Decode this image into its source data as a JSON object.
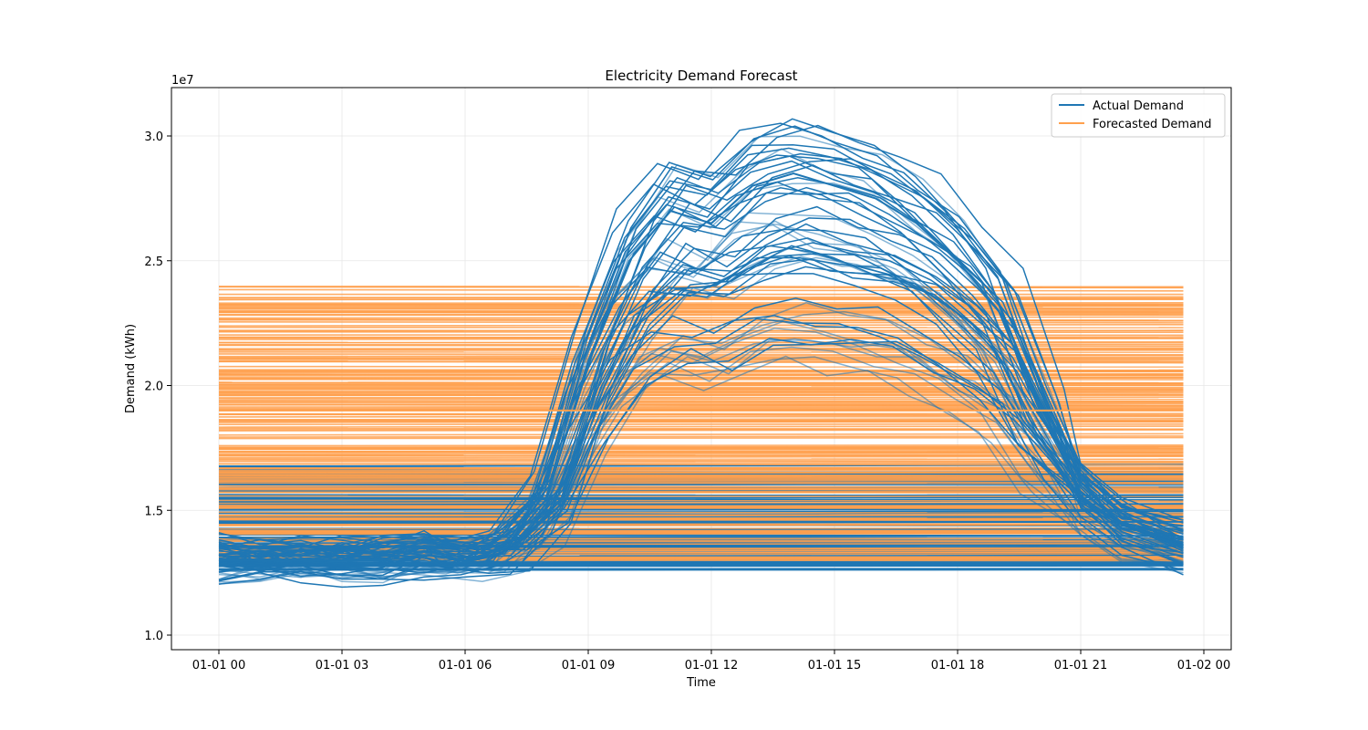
{
  "chart_data": {
    "type": "line",
    "title": "Electricity Demand Forecast",
    "xlabel": "Time",
    "ylabel": "Demand (kWh)",
    "y_offset_label": "1e7",
    "x_ticks": [
      "01-01 00",
      "01-01 03",
      "01-01 06",
      "01-01 09",
      "01-01 12",
      "01-01 15",
      "01-01 18",
      "01-01 21",
      "01-02 00"
    ],
    "y_ticks": [
      "1.0",
      "1.5",
      "2.0",
      "2.5",
      "3.0"
    ],
    "xlim": [
      "01-01 00",
      "01-02 00"
    ],
    "ylim": [
      10000000,
      31500000
    ],
    "grid": true,
    "legend_position": "top-right",
    "series": [
      {
        "name": "Actual Demand",
        "color": "#1f77b4",
        "x": [
          "00:00",
          "01:00",
          "02:00",
          "03:00",
          "04:00",
          "05:00",
          "06:00",
          "07:00",
          "08:00",
          "09:00",
          "10:00",
          "11:00",
          "12:00",
          "13:00",
          "14:00",
          "15:00",
          "16:00",
          "17:00",
          "18:00",
          "19:00",
          "20:00",
          "21:00",
          "22:00",
          "23:30"
        ],
        "values": [
          13000000,
          13000000,
          13000000,
          13000000,
          13000000,
          13200000,
          13000000,
          13500000,
          15500000,
          21000000,
          25000000,
          27000000,
          26500000,
          28000000,
          28500000,
          28000000,
          27500000,
          26500000,
          25000000,
          23000000,
          19000000,
          16000000,
          14500000,
          13500000
        ]
      },
      {
        "name": "Forecasted Demand",
        "color": "#ffa04d",
        "x": [
          "00:00",
          "23:30"
        ],
        "values": [
          19000000,
          19000000
        ]
      }
    ]
  }
}
